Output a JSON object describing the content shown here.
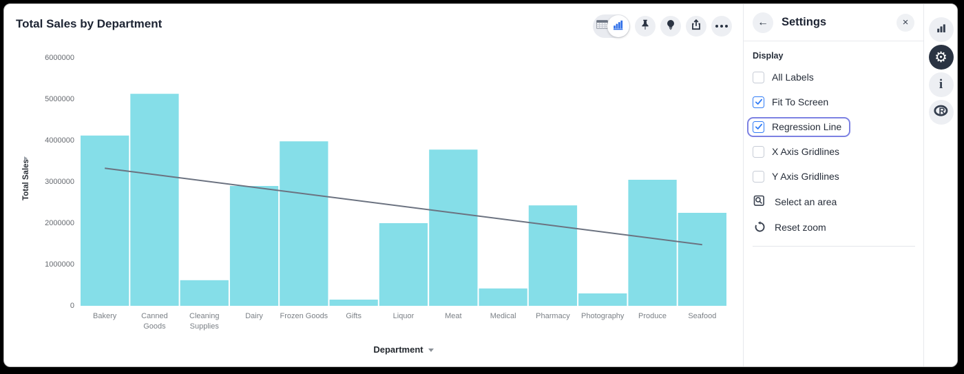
{
  "main": {
    "title": "Total Sales by Department",
    "toolbar": {
      "view_toggle": [
        {
          "icon": "table-view-icon",
          "active": false
        },
        {
          "icon": "chart-view-icon",
          "active": true
        }
      ],
      "buttons": [
        "pin-icon",
        "lightbulb-icon",
        "share-icon",
        "more-ellipsis-icon"
      ]
    },
    "y_axis_title": "Total Sales",
    "x_axis_title": "Department"
  },
  "settings_panel": {
    "back_icon": "back-arrow-icon",
    "title": "Settings",
    "close_icon": "close-icon",
    "section_label": "Display",
    "checkboxes": [
      {
        "label": "All Labels",
        "checked": false,
        "highlighted": false
      },
      {
        "label": "Fit To Screen",
        "checked": true,
        "highlighted": false
      },
      {
        "label": "Regression Line",
        "checked": true,
        "highlighted": true
      },
      {
        "label": "X Axis Gridlines",
        "checked": false,
        "highlighted": false
      },
      {
        "label": "Y Axis Gridlines",
        "checked": false,
        "highlighted": false
      }
    ],
    "actions": [
      {
        "label": "Select an area",
        "icon": "select-area-icon"
      },
      {
        "label": "Reset zoom",
        "icon": "reset-zoom-icon"
      }
    ]
  },
  "side_rail": {
    "icons": [
      "bar-chart-icon",
      "settings-gear-icon",
      "info-icon",
      "r-logo-icon"
    ],
    "active": "settings-gear-icon"
  },
  "colors": {
    "bar_fill": "#85dee8",
    "regression_line": "#6b7280",
    "accent_blue": "#2e6fe8",
    "checkbox_blue": "#2f7bf6",
    "highlight_ring": "#7c81e2",
    "dark_navy": "#2a3342"
  },
  "chart_data": {
    "type": "bar",
    "title": "Total Sales by Department",
    "xlabel": "Department",
    "ylabel": "Total Sales",
    "categories": [
      "Bakery",
      "Canned Goods",
      "Cleaning Supplies",
      "Dairy",
      "Frozen Goods",
      "Gifts",
      "Liquor",
      "Meat",
      "Medical",
      "Pharmacy",
      "Photography",
      "Produce",
      "Seafood"
    ],
    "values": [
      4120000,
      5130000,
      620000,
      2900000,
      3980000,
      150000,
      2000000,
      3780000,
      420000,
      2430000,
      300000,
      3050000,
      2250000
    ],
    "ylim": [
      0,
      6000000
    ],
    "y_ticks": [
      0,
      1000000,
      2000000,
      3000000,
      4000000,
      5000000,
      6000000
    ],
    "grid": false,
    "legend": false,
    "bar_color": "#85dee8",
    "regression_line": {
      "start_value": 3330000,
      "end_value": 1480000,
      "color": "#6b7280"
    }
  }
}
